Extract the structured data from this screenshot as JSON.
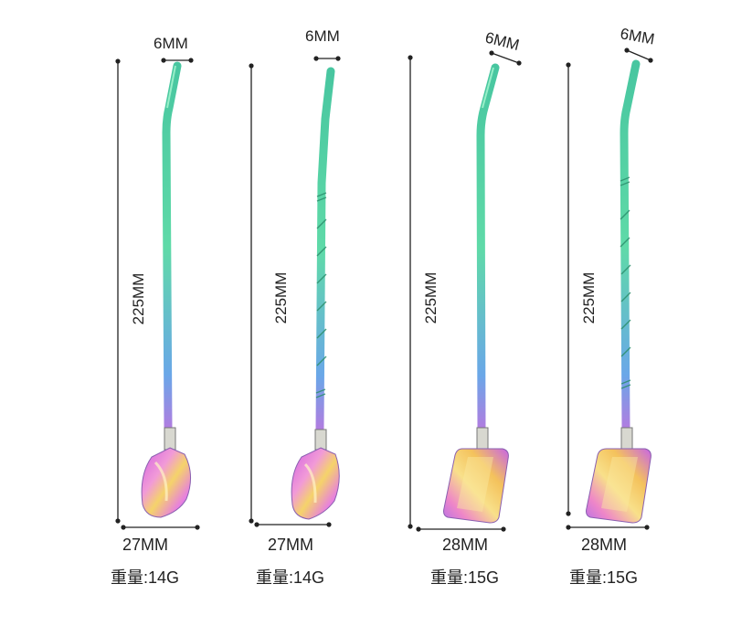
{
  "spoons": [
    {
      "top_width": "6MM",
      "length": "225MM",
      "bottom_width": "27MM",
      "weight": "重量:14G",
      "head": "shovel",
      "handle": "plain"
    },
    {
      "top_width": "6MM",
      "length": "225MM",
      "bottom_width": "27MM",
      "weight": "重量:14G",
      "head": "shovel",
      "handle": "twisted"
    },
    {
      "top_width": "6MM",
      "length": "225MM",
      "bottom_width": "28MM",
      "weight": "重量:15G",
      "head": "square",
      "handle": "plain"
    },
    {
      "top_width": "6MM",
      "length": "225MM",
      "bottom_width": "28MM",
      "weight": "重量:15G",
      "head": "square",
      "handle": "twisted"
    }
  ],
  "colors": {
    "metal_green": "#4bd3a4",
    "metal_pink": "#e77fe0",
    "metal_gold": "#f2c85a",
    "metal_blue": "#6fa8ff"
  }
}
